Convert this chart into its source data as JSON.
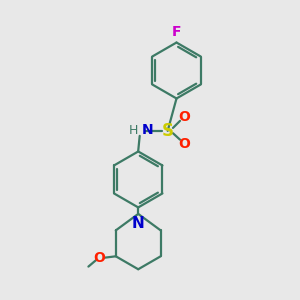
{
  "background_color": "#e8e8e8",
  "bond_color": "#3d7a65",
  "bond_width": 1.6,
  "F_color": "#cc00cc",
  "O_color": "#ff2000",
  "N_color": "#0000cc",
  "S_color": "#cccc00",
  "text_fontsize": 10,
  "fig_width": 3.0,
  "fig_height": 3.0,
  "dpi": 100,
  "xlim": [
    0,
    10
  ],
  "ylim": [
    0,
    10
  ]
}
